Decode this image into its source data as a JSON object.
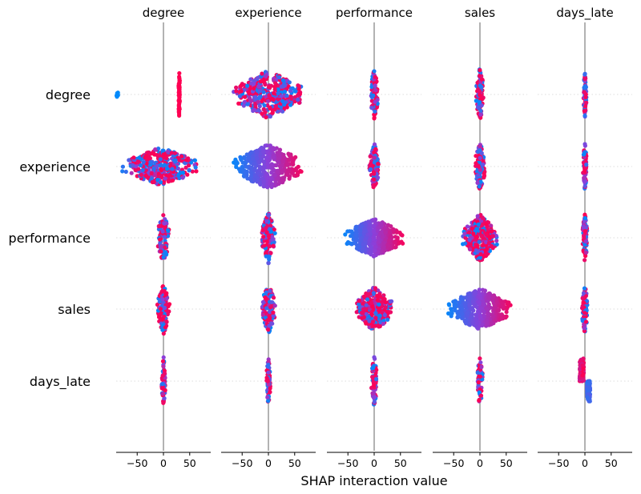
{
  "chart_data": {
    "type": "scatter",
    "subtype": "shap-interaction-beeswarm",
    "xlabel": "SHAP interaction value",
    "features": [
      "degree",
      "experience",
      "performance",
      "sales",
      "days_late"
    ],
    "xticks": [
      -50,
      0,
      50
    ],
    "xlim": [
      -90,
      90
    ],
    "grid": false,
    "colormap": {
      "low": "#008afb",
      "mid": "#8c3fd9",
      "high": "#ff0052"
    },
    "zero_line_color": "#808080",
    "row_guide_color": "#dddddd",
    "cells": [
      {
        "row": "degree",
        "col": "degree",
        "clusters": [
          {
            "center": -88,
            "spread": 2,
            "height": 6,
            "n": 8,
            "color": "low"
          },
          {
            "center": 30,
            "spread": 1.5,
            "height": 32,
            "n": 60,
            "color": "high"
          }
        ]
      },
      {
        "row": "degree",
        "col": "experience",
        "clusters": [
          {
            "center": 0,
            "spread": 70,
            "height": 30,
            "n": 380,
            "color": "mixed"
          }
        ]
      },
      {
        "row": "degree",
        "col": "performance",
        "clusters": [
          {
            "center": 0,
            "spread": 8,
            "height": 32,
            "n": 90,
            "color": "mixed"
          }
        ]
      },
      {
        "row": "degree",
        "col": "sales",
        "clusters": [
          {
            "center": 0,
            "spread": 8,
            "height": 34,
            "n": 90,
            "color": "mixed"
          }
        ]
      },
      {
        "row": "degree",
        "col": "days_late",
        "clusters": [
          {
            "center": 0,
            "spread": 3,
            "height": 30,
            "n": 70,
            "color": "mixed"
          }
        ]
      },
      {
        "row": "experience",
        "col": "degree",
        "clusters": [
          {
            "center": -5,
            "spread": 75,
            "height": 24,
            "n": 360,
            "color": "mixed"
          }
        ]
      },
      {
        "row": "experience",
        "col": "experience",
        "clusters": [
          {
            "center": 0,
            "spread": 70,
            "height": 28,
            "n": 400,
            "color": "gradient"
          }
        ]
      },
      {
        "row": "experience",
        "col": "performance",
        "clusters": [
          {
            "center": 0,
            "spread": 10,
            "height": 30,
            "n": 110,
            "color": "mixed"
          }
        ]
      },
      {
        "row": "experience",
        "col": "sales",
        "clusters": [
          {
            "center": 0,
            "spread": 10,
            "height": 32,
            "n": 110,
            "color": "mixed"
          }
        ]
      },
      {
        "row": "experience",
        "col": "days_late",
        "clusters": [
          {
            "center": 0,
            "spread": 4,
            "height": 30,
            "n": 70,
            "color": "mixed"
          }
        ]
      },
      {
        "row": "performance",
        "col": "degree",
        "clusters": [
          {
            "center": 0,
            "spread": 12,
            "height": 32,
            "n": 120,
            "color": "mixed"
          }
        ]
      },
      {
        "row": "performance",
        "col": "experience",
        "clusters": [
          {
            "center": 0,
            "spread": 14,
            "height": 32,
            "n": 120,
            "color": "mixed"
          }
        ]
      },
      {
        "row": "performance",
        "col": "performance",
        "clusters": [
          {
            "center": 0,
            "spread": 60,
            "height": 24,
            "n": 420,
            "color": "gradient"
          }
        ]
      },
      {
        "row": "performance",
        "col": "sales",
        "clusters": [
          {
            "center": 0,
            "spread": 35,
            "height": 30,
            "n": 300,
            "color": "mixed"
          }
        ]
      },
      {
        "row": "performance",
        "col": "days_late",
        "clusters": [
          {
            "center": 0,
            "spread": 5,
            "height": 32,
            "n": 80,
            "color": "mixed"
          }
        ]
      },
      {
        "row": "sales",
        "col": "degree",
        "clusters": [
          {
            "center": 0,
            "spread": 12,
            "height": 32,
            "n": 120,
            "color": "mixed"
          }
        ]
      },
      {
        "row": "sales",
        "col": "experience",
        "clusters": [
          {
            "center": 0,
            "spread": 14,
            "height": 32,
            "n": 120,
            "color": "mixed"
          }
        ]
      },
      {
        "row": "sales",
        "col": "performance",
        "clusters": [
          {
            "center": 0,
            "spread": 38,
            "height": 28,
            "n": 300,
            "color": "mixed"
          }
        ]
      },
      {
        "row": "sales",
        "col": "sales",
        "clusters": [
          {
            "center": 0,
            "spread": 65,
            "height": 26,
            "n": 420,
            "color": "gradient"
          }
        ]
      },
      {
        "row": "sales",
        "col": "days_late",
        "clusters": [
          {
            "center": 0,
            "spread": 6,
            "height": 32,
            "n": 80,
            "color": "mixed"
          }
        ]
      },
      {
        "row": "days_late",
        "col": "degree",
        "clusters": [
          {
            "center": 0,
            "spread": 4,
            "height": 32,
            "n": 70,
            "color": "mixed"
          }
        ]
      },
      {
        "row": "days_late",
        "col": "experience",
        "clusters": [
          {
            "center": 0,
            "spread": 4,
            "height": 32,
            "n": 70,
            "color": "mixed"
          }
        ]
      },
      {
        "row": "days_late",
        "col": "performance",
        "clusters": [
          {
            "center": 0,
            "spread": 6,
            "height": 32,
            "n": 70,
            "color": "mixed"
          }
        ]
      },
      {
        "row": "days_late",
        "col": "sales",
        "clusters": [
          {
            "center": 0,
            "spread": 6,
            "height": 32,
            "n": 70,
            "color": "mixed"
          }
        ]
      },
      {
        "row": "days_late",
        "col": "days_late",
        "clusters": [
          {
            "center": 0,
            "spread": 12,
            "height": 30,
            "n": 220,
            "color": "split"
          }
        ]
      }
    ]
  }
}
